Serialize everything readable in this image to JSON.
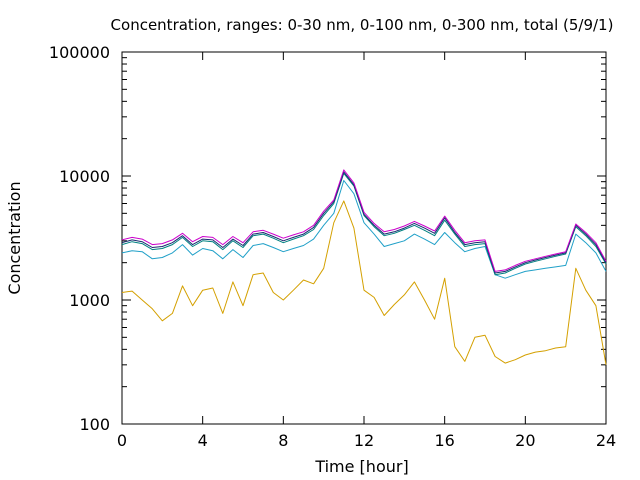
{
  "chart_data": {
    "type": "line",
    "title": "Concentration, ranges: 0-30 nm, 0-100 nm, 0-300 nm, total (5/9/1)",
    "xlabel": "Time [hour]",
    "ylabel": "Concentration",
    "xlim": [
      0,
      24
    ],
    "ylim": [
      100,
      100000
    ],
    "yscale": "log",
    "xticks": [
      0,
      4,
      8,
      12,
      16,
      20,
      24
    ],
    "xtick_labels": [
      "0",
      "4",
      "8",
      "12",
      "16",
      "20",
      "24"
    ],
    "yticks": [
      100,
      1000,
      10000,
      100000
    ],
    "ytick_labels": [
      "100",
      "1000",
      "10000",
      "100000"
    ],
    "grid": false,
    "legend": "none",
    "x": [
      0,
      0.5,
      1,
      1.5,
      2,
      2.5,
      3,
      3.5,
      4,
      4.5,
      5,
      5.5,
      6,
      6.5,
      7,
      7.5,
      8,
      8.5,
      9,
      9.5,
      10,
      10.5,
      11,
      11.5,
      12,
      12.5,
      13,
      13.5,
      14,
      14.5,
      15,
      15.5,
      16,
      16.5,
      17,
      17.5,
      18,
      18.5,
      19,
      19.5,
      20,
      20.5,
      21,
      21.5,
      22,
      22.5,
      23,
      23.5,
      24
    ],
    "series": [
      {
        "color": "#d4a000",
        "values": [
          1150,
          1180,
          1000,
          850,
          680,
          780,
          1300,
          900,
          1200,
          1250,
          780,
          1400,
          900,
          1600,
          1650,
          1150,
          1000,
          1200,
          1450,
          1350,
          1800,
          4200,
          6300,
          3800,
          1200,
          1050,
          750,
          920,
          1100,
          1400,
          1000,
          700,
          1500,
          420,
          320,
          500,
          520,
          350,
          310,
          330,
          360,
          380,
          390,
          410,
          420,
          1800,
          1200,
          900,
          300
        ]
      },
      {
        "color": "#20a0c8",
        "values": [
          2400,
          2500,
          2450,
          2150,
          2200,
          2400,
          2800,
          2300,
          2600,
          2500,
          2150,
          2550,
          2200,
          2750,
          2850,
          2650,
          2450,
          2600,
          2750,
          3100,
          4000,
          5000,
          9200,
          7200,
          4200,
          3400,
          2700,
          2850,
          3000,
          3400,
          3100,
          2800,
          3500,
          2900,
          2450,
          2600,
          2700,
          1600,
          1500,
          1600,
          1700,
          1750,
          1800,
          1850,
          1900,
          3400,
          2900,
          2400,
          1700
        ]
      },
      {
        "color": "#008080",
        "values": [
          2800,
          2950,
          2850,
          2550,
          2600,
          2800,
          3200,
          2700,
          3000,
          2950,
          2550,
          3000,
          2650,
          3300,
          3400,
          3150,
          2900,
          3100,
          3300,
          3700,
          4800,
          6000,
          10500,
          8300,
          4800,
          3900,
          3300,
          3450,
          3700,
          4000,
          3650,
          3300,
          4400,
          3400,
          2700,
          2800,
          2850,
          1600,
          1650,
          1800,
          1950,
          2050,
          2150,
          2250,
          2350,
          3900,
          3300,
          2700,
          1950
        ]
      },
      {
        "color": "#1a2a70",
        "values": [
          2900,
          3050,
          2950,
          2650,
          2700,
          2900,
          3300,
          2800,
          3100,
          3050,
          2650,
          3100,
          2750,
          3400,
          3500,
          3250,
          3000,
          3200,
          3400,
          3850,
          5000,
          6200,
          10800,
          8500,
          4900,
          4000,
          3400,
          3550,
          3800,
          4150,
          3800,
          3450,
          4600,
          3500,
          2800,
          2900,
          2950,
          1650,
          1700,
          1850,
          2000,
          2100,
          2200,
          2300,
          2400,
          4000,
          3400,
          2800,
          2000
        ]
      },
      {
        "color": "#cc00cc",
        "values": [
          3050,
          3200,
          3100,
          2800,
          2850,
          3050,
          3450,
          2950,
          3250,
          3200,
          2800,
          3250,
          2900,
          3550,
          3650,
          3400,
          3150,
          3350,
          3550,
          4000,
          5200,
          6400,
          11200,
          8800,
          5100,
          4150,
          3550,
          3700,
          3950,
          4300,
          3950,
          3600,
          4750,
          3650,
          2900,
          3000,
          3050,
          1700,
          1750,
          1900,
          2050,
          2150,
          2250,
          2350,
          2450,
          4100,
          3500,
          2900,
          2050
        ]
      }
    ]
  }
}
